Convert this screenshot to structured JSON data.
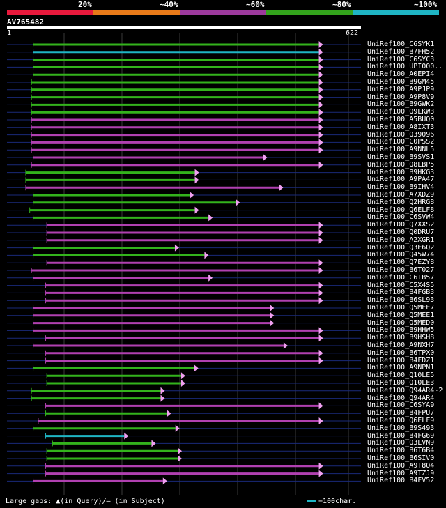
{
  "legend": {
    "segments": [
      {
        "label": "",
        "color": "#e8193c"
      },
      {
        "label": "20%",
        "color": "#e87a19"
      },
      {
        "label": "~40%",
        "color": "#9c3a9c"
      },
      {
        "label": "~60%",
        "color": "#33a31c"
      },
      {
        "label": "~80%",
        "color": "#1fb5c4"
      }
    ],
    "last_label": "~100%"
  },
  "query": {
    "id": "AV765482",
    "start_label": "1",
    "end_label": "622",
    "length": 622
  },
  "colors": {
    "green": "#33b31c",
    "magenta": "#b040b0",
    "cyan": "#1fb5c4",
    "line": "#3355ff",
    "arrow": "#f0a0f0",
    "marker": "#ffffa0"
  },
  "hits": [
    {
      "label": "UniRef100_C6SYK1",
      "color": "green",
      "start": 46,
      "end": 548
    },
    {
      "label": "UniRef100_B7FH52",
      "color": "cyan",
      "start": 46,
      "end": 548
    },
    {
      "label": "UniRef100_C6SYC3",
      "color": "green",
      "start": 46,
      "end": 548
    },
    {
      "label": "UniRef100_UPI000..",
      "color": "green",
      "start": 46,
      "end": 548
    },
    {
      "label": "UniRef100_A0EPI4",
      "color": "green",
      "start": 46,
      "end": 548
    },
    {
      "label": "UniRef100_B9GM45",
      "color": "green",
      "start": 43,
      "end": 548
    },
    {
      "label": "UniRef100_A9PJP9",
      "color": "green",
      "start": 43,
      "end": 548
    },
    {
      "label": "UniRef100_A9P8V9",
      "color": "green",
      "start": 43,
      "end": 548
    },
    {
      "label": "UniRef100_B9GWK2",
      "color": "green",
      "start": 43,
      "end": 548
    },
    {
      "label": "UniRef100_Q9LKW3",
      "color": "green",
      "start": 43,
      "end": 548
    },
    {
      "label": "UniRef100_A5BUQ0",
      "color": "magenta",
      "start": 43,
      "end": 548
    },
    {
      "label": "UniRef100_A8IXT3",
      "color": "magenta",
      "start": 43,
      "end": 548
    },
    {
      "label": "UniRef100_Q39096",
      "color": "magenta",
      "start": 43,
      "end": 548
    },
    {
      "label": "UniRef100_C0PSS2",
      "color": "magenta",
      "start": 43,
      "end": 548
    },
    {
      "label": "UniRef100_A9NNL5",
      "color": "magenta",
      "start": 43,
      "end": 548
    },
    {
      "label": "UniRef100_B9SVS1",
      "color": "magenta",
      "start": 46,
      "end": 450
    },
    {
      "label": "UniRef100_Q8LBP5",
      "color": "magenta",
      "start": 43,
      "end": 548
    },
    {
      "label": "UniRef100_B9HKG3",
      "color": "green",
      "start": 33,
      "end": 330
    },
    {
      "label": "UniRef100_A9PA47",
      "color": "green",
      "start": 33,
      "end": 330
    },
    {
      "label": "UniRef100_B9IHV4",
      "color": "magenta",
      "start": 33,
      "end": 478
    },
    {
      "label": "UniRef100_A7XDZ9",
      "color": "green",
      "start": 46,
      "end": 321
    },
    {
      "label": "UniRef100_Q2HRG8",
      "color": "green",
      "start": 46,
      "end": 402
    },
    {
      "label": "UniRef100_Q6ELF8",
      "color": "green",
      "start": 40,
      "end": 330
    },
    {
      "label": "UniRef100_C6SVW4",
      "color": "green",
      "start": 46,
      "end": 354
    },
    {
      "label": "UniRef100_Q7XXS2",
      "color": "magenta",
      "start": 70,
      "end": 548
    },
    {
      "label": "UniRef100_Q0DRU7",
      "color": "magenta",
      "start": 70,
      "end": 548
    },
    {
      "label": "UniRef100_A2XGR1",
      "color": "magenta",
      "start": 70,
      "end": 548
    },
    {
      "label": "UniRef100_Q3E6Q2",
      "color": "green",
      "start": 46,
      "end": 295
    },
    {
      "label": "UniRef100_Q45W74",
      "color": "green",
      "start": 46,
      "end": 347
    },
    {
      "label": "UniRef100_Q7EZY8",
      "color": "magenta",
      "start": 70,
      "end": 548
    },
    {
      "label": "UniRef100_B6T027",
      "color": "magenta",
      "start": 43,
      "end": 548
    },
    {
      "label": "UniRef100_C6TB57",
      "color": "magenta",
      "start": 46,
      "end": 354
    },
    {
      "label": "UniRef100_C5X4S5",
      "color": "magenta",
      "start": 68,
      "end": 548
    },
    {
      "label": "UniRef100_B4FGB3",
      "color": "magenta",
      "start": 68,
      "end": 548
    },
    {
      "label": "UniRef100_B6SL93",
      "color": "magenta",
      "start": 68,
      "end": 548
    },
    {
      "label": "UniRef100_Q5MEE7",
      "color": "magenta",
      "start": 46,
      "end": 462
    },
    {
      "label": "UniRef100_Q5MEE1",
      "color": "magenta",
      "start": 46,
      "end": 462
    },
    {
      "label": "UniRef100_Q5MED0",
      "color": "magenta",
      "start": 46,
      "end": 462
    },
    {
      "label": "UniRef100_B9HHW5",
      "color": "magenta",
      "start": 46,
      "end": 548
    },
    {
      "label": "UniRef100_B9HSH8",
      "color": "magenta",
      "start": 68,
      "end": 548
    },
    {
      "label": "UniRef100_A9NXH7",
      "color": "magenta",
      "start": 46,
      "end": 486
    },
    {
      "label": "UniRef100_B6TPX0",
      "color": "magenta",
      "start": 68,
      "end": 548
    },
    {
      "label": "UniRef100_B4FDZ1",
      "color": "magenta",
      "start": 68,
      "end": 548
    },
    {
      "label": "UniRef100_A9NPN1",
      "color": "green",
      "start": 46,
      "end": 329
    },
    {
      "label": "UniRef100_Q10LE5",
      "color": "green",
      "start": 70,
      "end": 306
    },
    {
      "label": "UniRef100_Q10LE3",
      "color": "green",
      "start": 70,
      "end": 306
    },
    {
      "label": "UniRef100_Q94AR4-2",
      "color": "green",
      "start": 43,
      "end": 270
    },
    {
      "label": "UniRef100_Q94AR4",
      "color": "green",
      "start": 43,
      "end": 270
    },
    {
      "label": "UniRef100_C6SYA9",
      "color": "magenta",
      "start": 68,
      "end": 548
    },
    {
      "label": "UniRef100_B4FPU7",
      "color": "green",
      "start": 68,
      "end": 281
    },
    {
      "label": "UniRef100_Q6ELF9",
      "color": "magenta",
      "start": 55,
      "end": 548
    },
    {
      "label": "UniRef100_B9S493",
      "color": "green",
      "start": 46,
      "end": 296
    },
    {
      "label": "UniRef100_B4FG69",
      "color": "cyan",
      "start": 68,
      "end": 206
    },
    {
      "label": "UniRef100_Q3LVN9",
      "color": "green",
      "start": 80,
      "end": 254
    },
    {
      "label": "UniRef100_B6T6B4",
      "color": "green",
      "start": 70,
      "end": 300
    },
    {
      "label": "UniRef100_B6SIV0",
      "color": "green",
      "start": 70,
      "end": 300
    },
    {
      "label": "UniRef100_A9T8Q4",
      "color": "magenta",
      "start": 68,
      "end": 548
    },
    {
      "label": "UniRef100_A9TZJ9",
      "color": "magenta",
      "start": 68,
      "end": 548
    },
    {
      "label": "UniRef100_B4FV52",
      "color": "magenta",
      "start": 46,
      "end": 274
    }
  ],
  "footer": {
    "gaps_text": "Large gaps: ▲(in Query)/– (in Subject)",
    "scale_text": "=100char."
  }
}
